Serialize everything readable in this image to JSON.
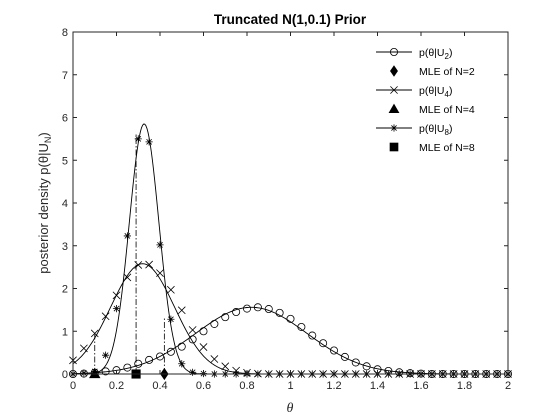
{
  "chart_data": {
    "type": "line",
    "title": "Truncated N(1,0.1) Prior",
    "xlabel": "θ",
    "ylabel": "posterior density p(θ|U",
    "ylabel_sub": "N",
    "ylabel_close": ")",
    "xlim": [
      0,
      2
    ],
    "ylim": [
      0,
      8
    ],
    "xticks": [
      "0",
      "0.2",
      "0.4",
      "0.6",
      "0.8",
      "1",
      "1.2",
      "1.4",
      "1.6",
      "1.8",
      "2"
    ],
    "yticks": [
      "0",
      "1",
      "2",
      "3",
      "4",
      "5",
      "6",
      "7",
      "8"
    ],
    "grid": false,
    "legend_position": "top-right",
    "series": [
      {
        "name": "p(θ|U2)",
        "label_main": "p(θ|U",
        "label_sub": "2",
        "label_close": ")",
        "marker": "circle",
        "color": "#000000",
        "mu": 0.82,
        "sigma": 0.257,
        "peak": 1.56,
        "x": [
          0,
          0.05,
          0.1,
          0.15,
          0.2,
          0.25,
          0.3,
          0.35,
          0.4,
          0.45,
          0.5,
          0.55,
          0.6,
          0.65,
          0.7,
          0.75,
          0.8,
          0.85,
          0.9,
          0.95,
          1.0,
          1.05,
          1.1,
          1.15,
          1.2,
          1.25,
          1.3,
          1.35,
          1.4,
          1.45,
          1.5,
          1.55,
          1.6,
          1.65,
          1.7,
          1.75,
          1.8,
          1.85,
          1.9,
          1.95,
          2.0
        ],
        "y": [
          0.0,
          0.01,
          0.03,
          0.06,
          0.09,
          0.15,
          0.24,
          0.33,
          0.41,
          0.52,
          0.64,
          0.81,
          1.0,
          1.17,
          1.33,
          1.45,
          1.53,
          1.56,
          1.52,
          1.43,
          1.29,
          1.1,
          0.9,
          0.72,
          0.55,
          0.4,
          0.27,
          0.18,
          0.11,
          0.07,
          0.04,
          0.02,
          0.01,
          0.0,
          0.0,
          0.0,
          0.0,
          0.0,
          0.0,
          0.0,
          0.0
        ]
      },
      {
        "name": "MLE of N=2",
        "label_main": "MLE of N=2",
        "marker": "diamond",
        "color": "#000000",
        "x": [
          0.42
        ],
        "y": [
          0
        ],
        "drop_y": 1.32
      },
      {
        "name": "p(θ|U4)",
        "label_main": "p(θ|U",
        "label_sub": "4",
        "label_close": ")",
        "marker": "x",
        "color": "#000000",
        "mu": 0.32,
        "sigma": 0.147,
        "peak": 2.58,
        "x": [
          0,
          0.05,
          0.1,
          0.15,
          0.2,
          0.25,
          0.3,
          0.35,
          0.4,
          0.45,
          0.5,
          0.55,
          0.6,
          0.65,
          0.7,
          0.75,
          0.8,
          0.85,
          0.9,
          0.95,
          1.0,
          1.05,
          1.1,
          1.15,
          1.2,
          1.25,
          1.3,
          1.35,
          1.4,
          1.45,
          1.5,
          1.55,
          1.6,
          1.65,
          1.7,
          1.75,
          1.8,
          1.85,
          1.9,
          1.95,
          2.0
        ],
        "y": [
          0.32,
          0.6,
          0.95,
          1.35,
          1.84,
          2.26,
          2.55,
          2.56,
          2.36,
          1.97,
          1.49,
          1.03,
          0.63,
          0.35,
          0.18,
          0.08,
          0.03,
          0.01,
          0.0,
          0.0,
          0.0,
          0.0,
          0.0,
          0.0,
          0.0,
          0.0,
          0.0,
          0.0,
          0.0,
          0.0,
          0.0,
          0.0,
          0.0,
          0.0,
          0.0,
          0.0,
          0.0,
          0.0,
          0.0,
          0.0,
          0.0
        ]
      },
      {
        "name": "MLE of N=4",
        "label_main": "MLE of N=4",
        "marker": "triangle",
        "color": "#000000",
        "x": [
          0.1
        ],
        "y": [
          0
        ],
        "drop_y": 0.93
      },
      {
        "name": "p(θ|U8)",
        "label_main": "p(θ|U",
        "label_sub": "8",
        "label_close": ")",
        "marker": "star",
        "color": "#000000",
        "mu": 0.327,
        "sigma": 0.068,
        "peak": 5.85,
        "x": [
          0,
          0.05,
          0.1,
          0.15,
          0.2,
          0.25,
          0.3,
          0.35,
          0.4,
          0.45,
          0.5,
          0.55,
          0.6,
          0.65,
          0.7,
          0.75,
          0.8,
          0.85,
          0.9,
          0.95,
          1.0,
          1.05,
          1.1,
          1.15,
          1.2,
          1.25,
          1.3,
          1.35,
          1.4,
          1.45,
          1.5,
          1.55,
          1.6,
          1.65,
          1.7,
          1.75,
          1.8,
          1.85,
          1.9,
          1.95,
          2.0
        ],
        "y": [
          0.0,
          0.02,
          0.06,
          0.44,
          1.53,
          3.23,
          5.5,
          5.43,
          3.02,
          1.28,
          0.24,
          0.04,
          0.01,
          0.0,
          0.0,
          0.0,
          0.0,
          0.0,
          0.0,
          0.0,
          0.0,
          0.0,
          0.0,
          0.0,
          0.0,
          0.0,
          0.0,
          0.0,
          0.0,
          0.0,
          0.0,
          0.0,
          0.0,
          0.0,
          0.0,
          0.0,
          0.0,
          0.0,
          0.0,
          0.0,
          0.0
        ]
      },
      {
        "name": "MLE of N=8",
        "label_main": "MLE of N=8",
        "marker": "square",
        "color": "#000000",
        "x": [
          0.29
        ],
        "y": [
          0
        ],
        "drop_y": 5.63
      }
    ]
  }
}
